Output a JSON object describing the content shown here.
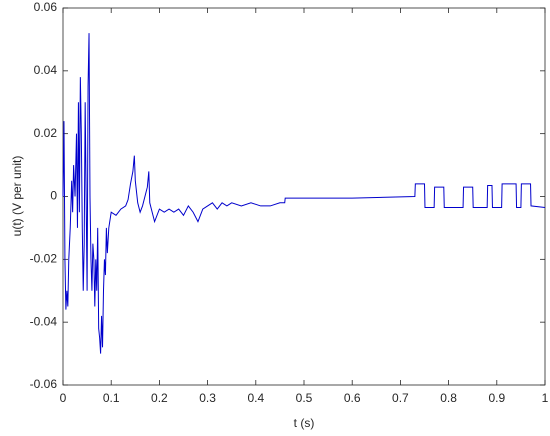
{
  "chart_data": {
    "type": "line",
    "xlabel": "t (s)",
    "ylabel": "u(t) (V per unit)",
    "xlim": [
      0,
      1
    ],
    "xticks": [
      0,
      0.1,
      0.2,
      0.3,
      0.4,
      0.5,
      0.6,
      0.7,
      0.8,
      0.9,
      1
    ],
    "ylim": [
      -0.06,
      0.06
    ],
    "yticks": [
      -0.06,
      -0.04,
      -0.02,
      0,
      0.02,
      0.04,
      0.06
    ],
    "grid": false,
    "series": [
      {
        "color": "#0000cc",
        "x": [
          0,
          0.002,
          0.004,
          0.006,
          0.008,
          0.01,
          0.012,
          0.015,
          0.018,
          0.02,
          0.022,
          0.025,
          0.028,
          0.03,
          0.032,
          0.034,
          0.036,
          0.038,
          0.04,
          0.042,
          0.044,
          0.046,
          0.048,
          0.05,
          0.052,
          0.054,
          0.056,
          0.058,
          0.06,
          0.062,
          0.064,
          0.066,
          0.068,
          0.07,
          0.072,
          0.074,
          0.076,
          0.078,
          0.08,
          0.082,
          0.084,
          0.086,
          0.088,
          0.09,
          0.092,
          0.095,
          0.1,
          0.11,
          0.12,
          0.13,
          0.135,
          0.14,
          0.145,
          0.148,
          0.15,
          0.155,
          0.16,
          0.165,
          0.17,
          0.175,
          0.178,
          0.18,
          0.185,
          0.19,
          0.2,
          0.21,
          0.22,
          0.23,
          0.24,
          0.25,
          0.26,
          0.27,
          0.28,
          0.29,
          0.3,
          0.31,
          0.32,
          0.33,
          0.34,
          0.35,
          0.37,
          0.39,
          0.41,
          0.43,
          0.45,
          0.46,
          0.461,
          0.6,
          0.73,
          0.731,
          0.75,
          0.751,
          0.77,
          0.771,
          0.79,
          0.791,
          0.83,
          0.831,
          0.85,
          0.851,
          0.88,
          0.881,
          0.89,
          0.891,
          0.91,
          0.911,
          0.94,
          0.941,
          0.95,
          0.951,
          0.97,
          0.971,
          1
        ],
        "values": [
          0,
          0.024,
          -0.02,
          -0.036,
          -0.03,
          -0.035,
          -0.02,
          -0.01,
          0.005,
          -0.005,
          0.01,
          0,
          0.02,
          -0.01,
          0.03,
          -0.005,
          0.038,
          0.02,
          -0.01,
          -0.03,
          -0.015,
          0.03,
          0,
          -0.03,
          0.035,
          0.052,
          0,
          -0.02,
          -0.03,
          -0.015,
          -0.02,
          -0.035,
          -0.02,
          -0.03,
          -0.01,
          -0.042,
          -0.045,
          -0.05,
          -0.038,
          -0.048,
          -0.03,
          -0.02,
          -0.025,
          -0.01,
          -0.018,
          -0.01,
          -0.005,
          -0.006,
          -0.004,
          -0.003,
          -0.001,
          0.004,
          0.008,
          0.013,
          0.005,
          -0.002,
          -0.005,
          -0.003,
          0,
          0.003,
          0.008,
          -0.002,
          -0.005,
          -0.008,
          -0.004,
          -0.005,
          -0.004,
          -0.005,
          -0.004,
          -0.006,
          -0.003,
          -0.005,
          -0.008,
          -0.004,
          -0.003,
          -0.002,
          -0.004,
          -0.002,
          -0.003,
          -0.002,
          -0.003,
          -0.002,
          -0.003,
          -0.003,
          -0.002,
          -0.002,
          -0.0005,
          -0.0005,
          0,
          0.004,
          0.004,
          -0.0035,
          -0.0035,
          0.003,
          0.003,
          -0.0035,
          -0.0035,
          0.003,
          0.003,
          -0.0035,
          -0.0035,
          0.0035,
          0.0035,
          -0.0035,
          -0.0035,
          0.004,
          0.004,
          -0.0035,
          -0.0035,
          0.004,
          0.004,
          -0.003,
          -0.0035
        ]
      }
    ]
  }
}
